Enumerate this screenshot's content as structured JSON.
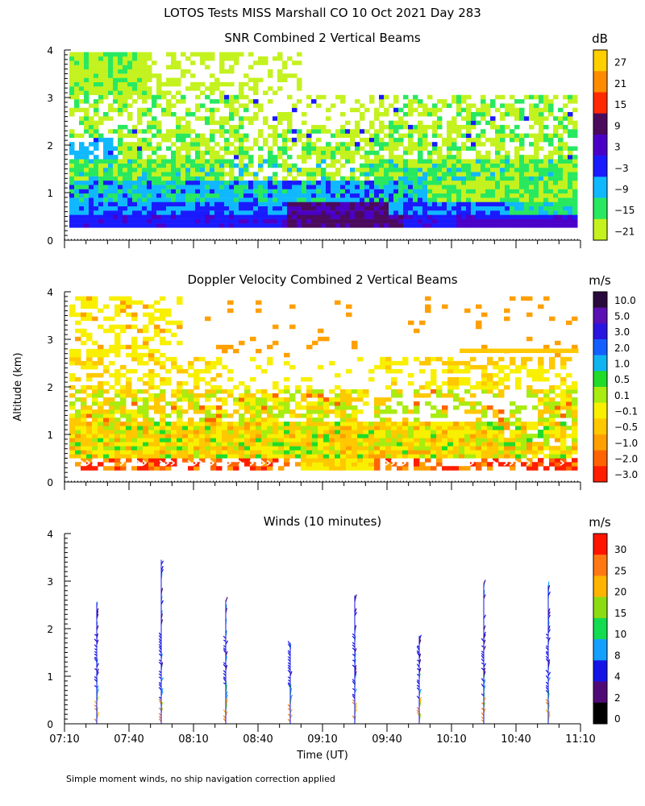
{
  "page_title": "LOTOS Tests MISS Marshall CO  10 Oct 2021 Day 283",
  "footnote": "Simple moment winds, no ship navigation correction applied",
  "chart_data": [
    {
      "type": "heatmap",
      "title": "SNR Combined 2 Vertical Beams",
      "ylabel": "",
      "xlabel": "",
      "ylim": [
        0,
        4
      ],
      "y_ticks": [
        "0",
        "1",
        "2",
        "3",
        "4"
      ],
      "colorbar": {
        "unit": "dB",
        "labels": [
          "27",
          "21",
          "15",
          "9",
          "3",
          "−3",
          "−9",
          "−15",
          "−21"
        ],
        "colors": [
          "#ffd000",
          "#ff8c00",
          "#ff2a00",
          "#4b0a5c",
          "#4b00c8",
          "#1a1aff",
          "#10b8ff",
          "#28e860",
          "#c4f21f"
        ]
      }
    },
    {
      "type": "heatmap",
      "title": "Doppler Velocity Combined 2 Vertical Beams",
      "ylabel": "Altitude (km)",
      "xlabel": "",
      "ylim": [
        0,
        4
      ],
      "y_ticks": [
        "0",
        "1",
        "2",
        "3",
        "4"
      ],
      "colorbar": {
        "unit": "m/s",
        "labels": [
          "10.0",
          "5.0",
          "3.0",
          "2.0",
          "1.0",
          "0.5",
          "0.1",
          "−0.1",
          "−0.5",
          "−1.0",
          "−2.0",
          "−3.0"
        ],
        "colors": [
          "#2a0a3c",
          "#5a10b4",
          "#2a14e0",
          "#1460ff",
          "#10b4f0",
          "#20dc28",
          "#a8ec10",
          "#f8f000",
          "#ffc800",
          "#ffa000",
          "#ff6400",
          "#ff1e00"
        ]
      }
    },
    {
      "type": "scatter",
      "title": "Winds (10 minutes)",
      "xlabel": "Time (UT)",
      "ylabel": "",
      "ylim": [
        0,
        4
      ],
      "y_ticks": [
        "0",
        "1",
        "2",
        "3",
        "4"
      ],
      "x_ticks": [
        "07:10",
        "07:40",
        "08:10",
        "08:40",
        "09:10",
        "09:40",
        "10:10",
        "10:40",
        "11:10"
      ],
      "x_range_hours": [
        7.1667,
        11.1667
      ],
      "profile_times": [
        "07:25",
        "07:55",
        "08:25",
        "08:55",
        "09:25",
        "09:55",
        "10:25",
        "10:55"
      ],
      "colorbar": {
        "unit": "m/s",
        "labels": [
          "30",
          "25",
          "20",
          "15",
          "10",
          "8",
          "4",
          "2",
          "0"
        ],
        "colors": [
          "#ff1400",
          "#ff7814",
          "#ffb400",
          "#8cdc14",
          "#14dc50",
          "#14a0ff",
          "#1414e6",
          "#500a78",
          "#000000"
        ]
      }
    }
  ]
}
